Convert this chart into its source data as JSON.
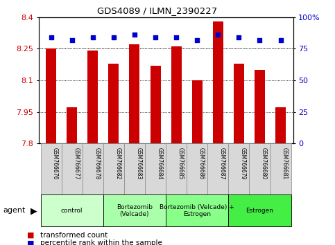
{
  "title": "GDS4089 / ILMN_2390227",
  "samples": [
    "GSM766676",
    "GSM766677",
    "GSM766678",
    "GSM766682",
    "GSM766683",
    "GSM766684",
    "GSM766685",
    "GSM766686",
    "GSM766687",
    "GSM766679",
    "GSM766680",
    "GSM766681"
  ],
  "bar_values": [
    8.25,
    7.97,
    8.24,
    8.18,
    8.27,
    8.17,
    8.26,
    8.1,
    8.38,
    8.18,
    8.15,
    7.97
  ],
  "percentile_values": [
    84,
    82,
    84,
    84,
    86,
    84,
    84,
    82,
    86,
    84,
    82,
    82
  ],
  "bar_color": "#cc0000",
  "percentile_color": "#0000cc",
  "ylim_left": [
    7.8,
    8.4
  ],
  "ylim_right": [
    0,
    100
  ],
  "yticks_left": [
    7.8,
    7.95,
    8.1,
    8.25,
    8.4
  ],
  "yticks_right": [
    0,
    25,
    50,
    75,
    100
  ],
  "groups": [
    {
      "label": "control",
      "start": 0,
      "end": 3,
      "color": "#ccffcc"
    },
    {
      "label": "Bortezomib\n(Velcade)",
      "start": 3,
      "end": 6,
      "color": "#aaffaa"
    },
    {
      "label": "Bortezomib (Velcade) +\nEstrogen",
      "start": 6,
      "end": 9,
      "color": "#88ff88"
    },
    {
      "label": "Estrogen",
      "start": 9,
      "end": 12,
      "color": "#44ee44"
    }
  ],
  "legend_bar_label": "transformed count",
  "legend_pct_label": "percentile rank within the sample",
  "agent_label": "agent",
  "bar_width": 0.5,
  "background_color": "#ffffff",
  "tick_label_color_left": "#cc0000",
  "tick_label_color_right": "#0000cc",
  "sample_box_color": "#d8d8d8",
  "sample_box_edge": "#888888"
}
